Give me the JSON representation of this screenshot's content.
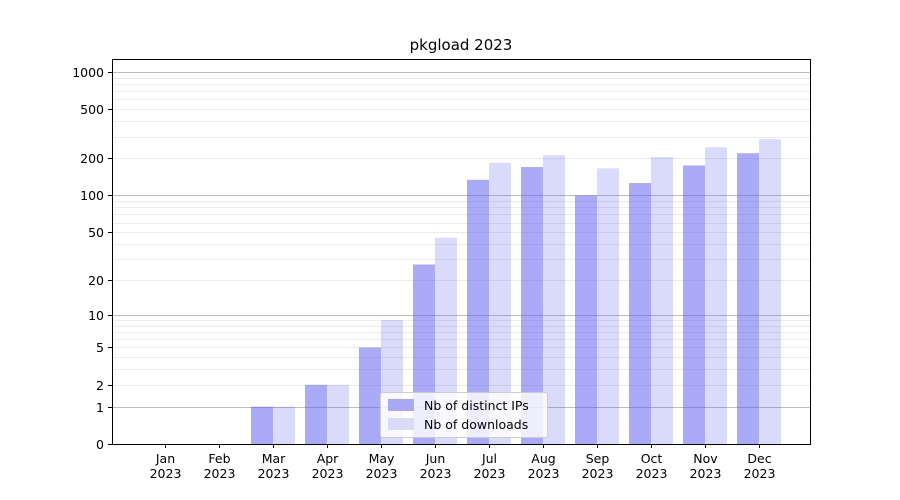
{
  "chart_data": {
    "type": "bar",
    "title": "pkgload 2023",
    "categories": [
      "Jan",
      "Feb",
      "Mar",
      "Apr",
      "May",
      "Jun",
      "Jul",
      "Aug",
      "Sep",
      "Oct",
      "Nov",
      "Dec"
    ],
    "category_year": "2023",
    "series": [
      {
        "name": "Nb of distinct IPs",
        "color": "#a8a8f5",
        "fill": "rgba(85,85,238,0.5)",
        "values": [
          0,
          0,
          1,
          2,
          5,
          27,
          134,
          170,
          100,
          126,
          175,
          220
        ]
      },
      {
        "name": "Nb of downloads",
        "color": "#dadaf9",
        "fill": "rgba(85,85,238,0.22)",
        "values": [
          0,
          0,
          1,
          2,
          9,
          45,
          184,
          212,
          166,
          204,
          246,
          286
        ]
      }
    ],
    "yscale": "log1p",
    "yticks": [
      0,
      1,
      2,
      5,
      10,
      20,
      50,
      100,
      200,
      500,
      1000
    ],
    "ylim": [
      0,
      1270
    ],
    "grid": "on",
    "grid_major_color": "#bdbdbd",
    "grid_minor_color": "#eaeaea",
    "axis_color": "#000000",
    "legend_position": "lower-center"
  }
}
